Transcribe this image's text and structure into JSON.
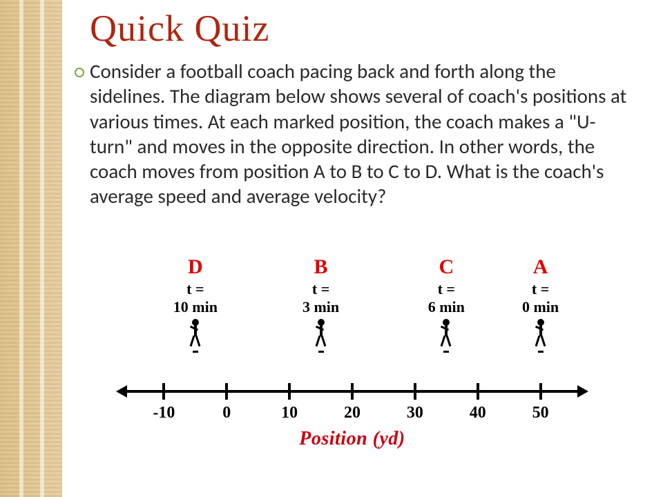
{
  "title": "Quick Quiz",
  "title_color": "#b0250e",
  "body_text": "Consider a football coach pacing back and forth along the sidelines. The diagram below shows several of coach's positions at various times. At each marked position, the coach makes a \"U-turn\" and moves in the opposite direction. In other words, the coach moves from position A to B to C to D.  What is the coach's average speed and average velocity?",
  "bullet_color": "#7fa23f",
  "sidebar_panel_color": "#ead9b0",
  "diagram": {
    "type": "number-line-diagram",
    "points": [
      {
        "label": "D",
        "time_top": "t =",
        "time_bottom": "10 min",
        "position_yd": -5
      },
      {
        "label": "B",
        "time_top": "t =",
        "time_bottom": "3 min",
        "position_yd": 15
      },
      {
        "label": "C",
        "time_top": "t =",
        "time_bottom": "6 min",
        "position_yd": 35
      },
      {
        "label": "A",
        "time_top": "t =",
        "time_bottom": "0 min",
        "position_yd": 50
      }
    ],
    "axis": {
      "min": -15,
      "max": 55,
      "ticks": [
        -10,
        0,
        10,
        20,
        30,
        40,
        50
      ],
      "xlabel": "Position (yd)",
      "label_color": "#c8000f",
      "point_label_color": "#e00000",
      "axis_color": "#000000",
      "tick_fontsize": 24,
      "label_fontsize": 28
    }
  }
}
